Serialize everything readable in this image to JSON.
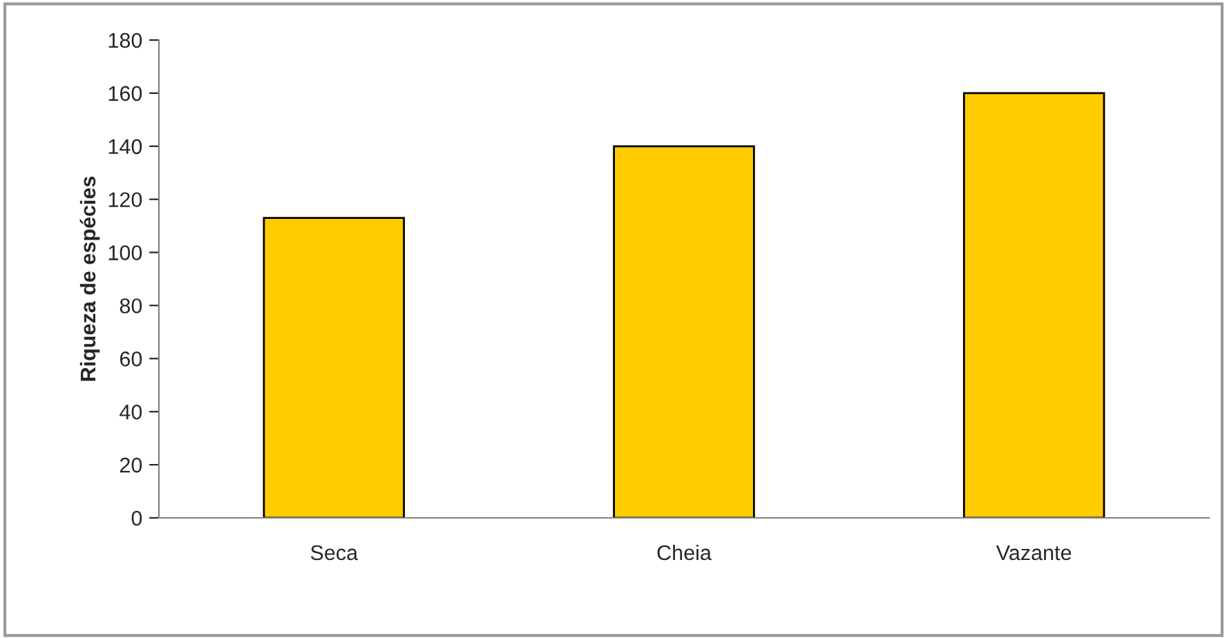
{
  "chart_data": {
    "type": "bar",
    "ylabel": "Riqueza de espécies",
    "categories": [
      "Seca",
      "Cheia",
      "Vazante"
    ],
    "values": [
      113,
      140,
      160
    ],
    "color": "#ffcc00",
    "ylim": [
      0,
      180
    ],
    "yticks": [
      0,
      20,
      40,
      60,
      80,
      100,
      120,
      140,
      160,
      180
    ],
    "grid": false
  }
}
